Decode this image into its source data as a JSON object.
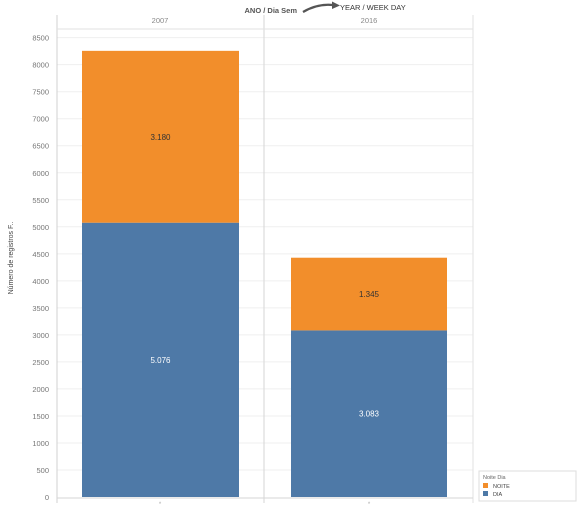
{
  "chart_data": {
    "type": "bar",
    "stacked": true,
    "header": {
      "field_label": "ANO / Dia Sem",
      "annotation": "YEAR / WEEK DAY"
    },
    "panels": [
      "2007",
      "2016"
    ],
    "categories": [
      "*",
      "*"
    ],
    "series": [
      {
        "name": "DIA",
        "color": "#4e79a7",
        "values": [
          5076,
          3083
        ],
        "labels": [
          "5.076",
          "3.083"
        ]
      },
      {
        "name": "NOITE",
        "color": "#f28e2b",
        "values": [
          3180,
          1345
        ],
        "labels": [
          "3.180",
          "1.345"
        ]
      }
    ],
    "ylabel": "Número de registros F..",
    "ylim": [
      0,
      8650
    ],
    "yticks": [
      0,
      500,
      1000,
      1500,
      2000,
      2500,
      3000,
      3500,
      4000,
      4500,
      5000,
      5500,
      6000,
      6500,
      7000,
      7500,
      8000,
      8500
    ],
    "grid": true,
    "legend": {
      "title": "Noite Dia",
      "position": "bottom-right"
    }
  }
}
